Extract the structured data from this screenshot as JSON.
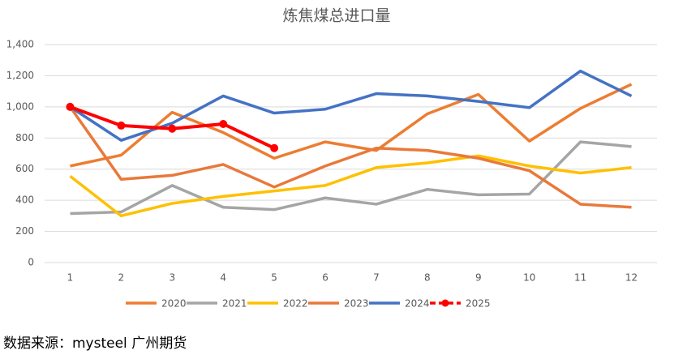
{
  "chart_data": {
    "type": "line",
    "title": "炼焦煤总进口量",
    "categories": [
      "1",
      "2",
      "3",
      "4",
      "5",
      "6",
      "7",
      "8",
      "9",
      "10",
      "11",
      "12"
    ],
    "series": [
      {
        "name": "2020",
        "color": "#ed7d31",
        "values": [
          620,
          690,
          965,
          835,
          670,
          775,
          720,
          955,
          1080,
          780,
          990,
          1145
        ]
      },
      {
        "name": "2021",
        "color": "#a5a5a5",
        "values": [
          315,
          325,
          495,
          355,
          340,
          415,
          375,
          470,
          435,
          440,
          775,
          745
        ]
      },
      {
        "name": "2022",
        "color": "#ffc000",
        "values": [
          555,
          300,
          380,
          425,
          460,
          495,
          610,
          640,
          685,
          620,
          575,
          610
        ]
      },
      {
        "name": "2023",
        "color": "#e8793a",
        "values": [
          1000,
          535,
          560,
          630,
          485,
          620,
          735,
          720,
          670,
          590,
          375,
          355
        ]
      },
      {
        "name": "2024",
        "color": "#4472c4",
        "values": [
          1000,
          785,
          895,
          1070,
          960,
          985,
          1085,
          1070,
          1035,
          995,
          1230,
          1070
        ]
      },
      {
        "name": "2025",
        "color": "#ff0000",
        "values": [
          1000,
          880,
          860,
          890,
          735,
          null,
          null,
          null,
          null,
          null,
          null,
          null
        ]
      }
    ],
    "ylim": [
      0,
      1400
    ],
    "yticks": [
      0,
      200,
      400,
      600,
      800,
      {
        "value": 1000,
        "label": "1,000"
      },
      {
        "value": 1200,
        "label": "1,200"
      },
      {
        "value": 1400,
        "label": "1,400"
      }
    ],
    "grid": true,
    "legend": "bottom"
  },
  "footer": "数据来源：mysteel  广州期货"
}
